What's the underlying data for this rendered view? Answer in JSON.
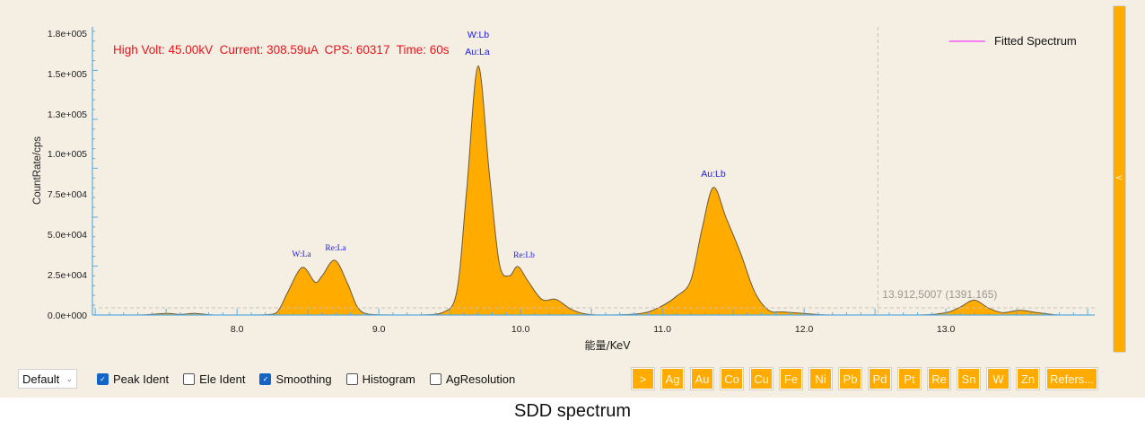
{
  "info": {
    "text": "High Volt: 45.00kV  Current: 308.59uA  CPS: 60317  Time: 60s"
  },
  "legend": {
    "label": "Fitted Spectrum",
    "color": "#f57ff0"
  },
  "cursor_readout": "13.912,5007 (1391.165)",
  "side_panel": {
    "arrow": "<"
  },
  "controls": {
    "preset": "Default",
    "checkboxes": [
      {
        "label": "Peak Ident",
        "checked": true
      },
      {
        "label": "Ele Ident",
        "checked": false
      },
      {
        "label": "Smoothing",
        "checked": true
      },
      {
        "label": "Histogram",
        "checked": false
      },
      {
        "label": "AgResolution",
        "checked": false
      }
    ]
  },
  "element_buttons": [
    ">",
    "Ag",
    "Au",
    "Co",
    "Cu",
    "Fe",
    "Ni",
    "Pb",
    "Pd",
    "Pt",
    "Re",
    "Sn",
    "W",
    "Zn",
    "Refers..."
  ],
  "caption": "SDD spectrum",
  "colors": {
    "fill": "#ffab00",
    "axis": "#5aaee0",
    "info": "#e8141c",
    "peak_label": "#2020e0"
  },
  "chart_data": {
    "type": "area",
    "title": "SDD spectrum",
    "xlabel": "能量/KeV",
    "ylabel": "CountRate/cps",
    "xlim": [
      6.98,
      14.05
    ],
    "ylim": [
      0,
      180000
    ],
    "x_ticks": [
      "8.0",
      "9.0",
      "10.0",
      "11.0",
      "12.0",
      "13.0"
    ],
    "y_ticks": [
      "0.0e+000",
      "2.5e+004",
      "5.0e+004",
      "7.5e+004",
      "1.0e+005",
      "1.3e+005",
      "1.5e+005",
      "1.8e+005"
    ],
    "grid": false,
    "legend_position": "top-right",
    "series": [
      {
        "name": "Fitted Spectrum",
        "x": [
          6.98,
          7.3,
          7.5,
          7.6,
          7.7,
          7.85,
          8.1,
          8.25,
          8.3,
          8.36,
          8.46,
          8.55,
          8.6,
          8.69,
          8.78,
          8.85,
          8.93,
          9.1,
          9.3,
          9.45,
          9.55,
          9.62,
          9.7,
          9.78,
          9.85,
          9.92,
          9.98,
          10.05,
          10.15,
          10.25,
          10.35,
          10.45,
          10.6,
          10.85,
          10.98,
          11.1,
          11.2,
          11.28,
          11.36,
          11.45,
          11.55,
          11.65,
          11.75,
          11.85,
          12.0,
          12.2,
          12.8,
          13.0,
          13.1,
          13.2,
          13.3,
          13.4,
          13.52,
          13.65,
          13.8,
          14.05
        ],
        "values": [
          0,
          0,
          1000,
          400,
          1000,
          0,
          0,
          500,
          4000,
          15000,
          30400,
          21000,
          25000,
          35000,
          20000,
          5000,
          500,
          0,
          0,
          1500,
          15000,
          80000,
          159000,
          90000,
          33000,
          25000,
          31000,
          22000,
          10000,
          10000,
          4000,
          800,
          0,
          1000,
          5000,
          12000,
          22000,
          55000,
          81500,
          62000,
          40000,
          15000,
          3000,
          2000,
          1000,
          0,
          0,
          1500,
          5000,
          9500,
          4500,
          1500,
          3000,
          1500,
          0,
          0
        ]
      }
    ],
    "annotations": [
      {
        "label": "W:La",
        "x": 8.46,
        "style": "mono"
      },
      {
        "label": "Re:La",
        "x": 8.69,
        "style": "mono"
      },
      {
        "label": "W:Lb",
        "x": 9.7,
        "style": "sans",
        "row": 1
      },
      {
        "label": "Au:La",
        "x": 9.7,
        "style": "sans",
        "row": 2
      },
      {
        "label": "Re:Lb",
        "x": 9.98,
        "style": "mono"
      },
      {
        "label": "Au:Lb",
        "x": 11.36,
        "style": "sans"
      }
    ],
    "cursor": {
      "x": 12.52,
      "label": "13.912,5007 (1391.165)"
    }
  }
}
